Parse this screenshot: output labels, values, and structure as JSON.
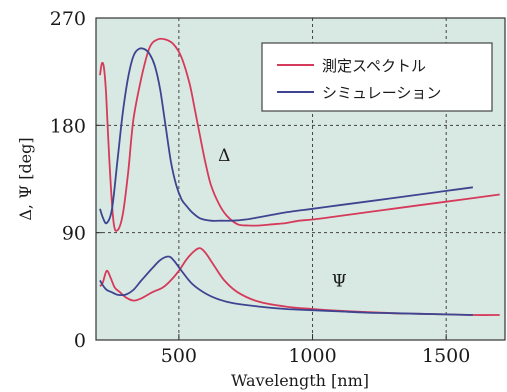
{
  "chart_data": {
    "type": "line",
    "title": "",
    "xlabel": "Wavelength [nm]",
    "ylabel": "Δ, Ψ [deg]",
    "xlim": [
      190,
      1720
    ],
    "ylim": [
      0,
      270
    ],
    "xticks": [
      500,
      1000,
      1500
    ],
    "xtick_labels": [
      "500",
      "1000",
      "1500"
    ],
    "yticks": [
      0,
      90,
      180,
      270
    ],
    "ytick_labels": [
      "0",
      "90",
      "180",
      "270"
    ],
    "grid": true,
    "background_color": "#d8e8e3",
    "legend": {
      "position": "top-right",
      "entries": [
        "測定スペクトル",
        "シミュレーション"
      ]
    },
    "annotations": [
      {
        "text": "Δ",
        "x": 670,
        "y": 150
      },
      {
        "text": "Ψ",
        "x": 1100,
        "y": 45
      }
    ],
    "series": [
      {
        "name": "測定スペクトル",
        "label": "Δ",
        "color": "#d63a5a",
        "x": [
          205,
          212,
          220,
          228,
          240,
          255,
          270,
          290,
          310,
          330,
          360,
          390,
          420,
          450,
          480,
          510,
          540,
          560,
          580,
          600,
          620,
          650,
          680,
          720,
          760,
          800,
          850,
          900,
          950,
          1000,
          1100,
          1200,
          1300,
          1400,
          1500,
          1600,
          1700
        ],
        "y": [
          222,
          232,
          228,
          205,
          150,
          100,
          92,
          105,
          140,
          185,
          220,
          245,
          252,
          252,
          248,
          237,
          215,
          193,
          170,
          148,
          130,
          114,
          104,
          97,
          96,
          96,
          97,
          98,
          100,
          101,
          104,
          107,
          110,
          113,
          116,
          119,
          122
        ]
      },
      {
        "name": "シミュレーション",
        "label": "Δ",
        "color": "#3e4590",
        "x": [
          205,
          215,
          230,
          250,
          270,
          290,
          310,
          330,
          350,
          370,
          390,
          410,
          430,
          450,
          470,
          490,
          510,
          530,
          550,
          580,
          620,
          660,
          700,
          750,
          800,
          850,
          900,
          1000,
          1100,
          1200,
          1300,
          1400,
          1500,
          1600
        ],
        "y": [
          110,
          103,
          98,
          110,
          150,
          190,
          220,
          238,
          244,
          244,
          240,
          230,
          210,
          180,
          150,
          130,
          118,
          112,
          107,
          102,
          100,
          100,
          100,
          101,
          103,
          105,
          107,
          110,
          113,
          116,
          119,
          122,
          125,
          128
        ]
      },
      {
        "name": "測定スペクトル",
        "label": "Ψ",
        "color": "#d63a5a",
        "x": [
          205,
          215,
          230,
          245,
          260,
          280,
          300,
          330,
          360,
          400,
          440,
          470,
          500,
          530,
          560,
          580,
          600,
          630,
          670,
          720,
          800,
          900,
          1000,
          1100,
          1200,
          1300,
          1400,
          1500,
          1600,
          1700
        ],
        "y": [
          45,
          48,
          58,
          52,
          44,
          40,
          36,
          33,
          35,
          40,
          44,
          50,
          58,
          68,
          75,
          77,
          73,
          63,
          50,
          40,
          32,
          28,
          26,
          24.5,
          23.5,
          22.5,
          22,
          21.5,
          21,
          21
        ]
      },
      {
        "name": "シミュレーション",
        "label": "Ψ",
        "color": "#3e4590",
        "x": [
          205,
          215,
          230,
          250,
          270,
          300,
          330,
          360,
          400,
          430,
          460,
          480,
          510,
          550,
          600,
          650,
          700,
          800,
          900,
          1000,
          1100,
          1200,
          1300,
          1400,
          1500,
          1600
        ],
        "y": [
          50,
          46,
          42,
          40,
          38,
          38,
          42,
          50,
          60,
          67,
          70,
          67,
          58,
          47,
          39,
          34,
          31,
          28,
          26,
          25,
          24,
          23,
          22.5,
          22,
          21.5,
          21
        ]
      }
    ]
  }
}
